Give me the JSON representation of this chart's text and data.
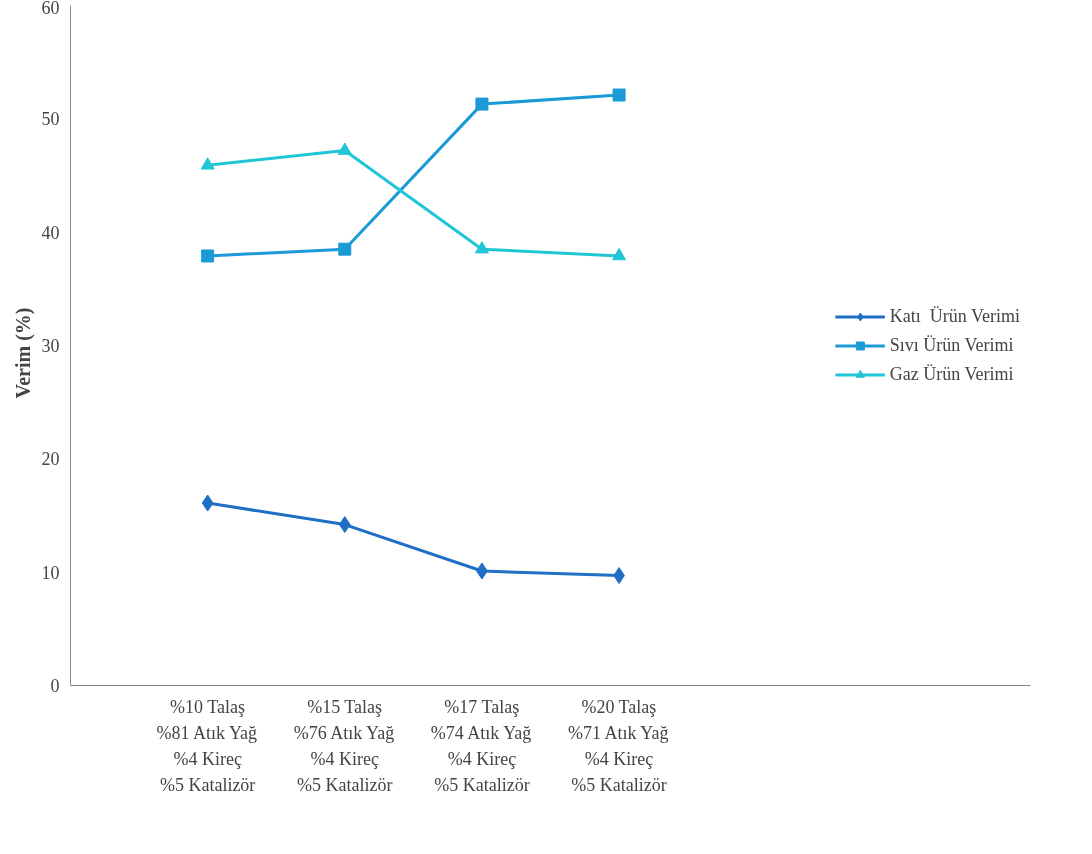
{
  "chart_data": {
    "type": "line",
    "ylabel": "Verim    (%)",
    "categories": [
      "%10 Talaş\n%81 Atık Yağ\n%4 Kireç\n%5 Katalizör",
      "%15 Talaş\n%76 Atık Yağ\n%4 Kireç\n%5 Katalizör",
      "%17 Talaş\n%74 Atık Yağ\n%4 Kireç\n%5 Katalizör",
      "%20 Talaş\n%71 Atık Yağ\n%4 Kireç\n%5 Katalizör"
    ],
    "series": [
      {
        "name": "Katı  Ürün Verimi",
        "color": "#1f6fc5",
        "marker": "diamond",
        "values": [
          16.1,
          14.2,
          10.1,
          9.7
        ]
      },
      {
        "name": "Sıvı Ürün Verimi",
        "color": "#1a9ad6",
        "marker": "square",
        "values": [
          37.9,
          38.5,
          51.3,
          52.1
        ]
      },
      {
        "name": "Gaz Ürün Verimi",
        "color": "#20c6d6",
        "marker": "triangle",
        "values": [
          45.9,
          47.2,
          38.5,
          37.9
        ]
      }
    ],
    "ylim": [
      0,
      60
    ],
    "yticks": [
      0,
      10,
      20,
      30,
      40,
      50,
      60
    ],
    "grid": false,
    "legend": "right",
    "line_style": "solid"
  }
}
